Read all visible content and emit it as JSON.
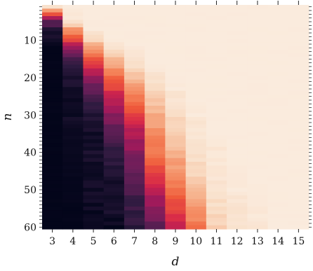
{
  "chart_data": {
    "type": "heatmap",
    "title": "",
    "xlabel": "d",
    "ylabel": "n",
    "x": [
      3,
      4,
      5,
      6,
      7,
      8,
      9,
      10,
      11,
      12,
      13,
      14,
      15
    ],
    "y_range": [
      1,
      60
    ],
    "y_ticks": [
      10,
      20,
      30,
      40,
      50,
      60
    ],
    "y_inverted": true,
    "colormap": "rocket",
    "colormap_stops": [
      "#03051a",
      "#2f1b40",
      "#6b1f5a",
      "#a11a5b",
      "#d6264a",
      "#ef5a3a",
      "#f4845a",
      "#f6b48f",
      "#f9dcc4",
      "#faebdd"
    ],
    "value_range": [
      0,
      1
    ],
    "grid": false,
    "legend": "none",
    "columns": [
      {
        "d": 3,
        "transition": [
          [
            1,
            0.95
          ],
          [
            3,
            0.55
          ],
          [
            5,
            0.2
          ],
          [
            8,
            0.05
          ],
          [
            12,
            0.0
          ],
          [
            60,
            0.0
          ]
        ]
      },
      {
        "d": 4,
        "transition": [
          [
            1,
            1.0
          ],
          [
            5,
            0.95
          ],
          [
            7,
            0.72
          ],
          [
            10,
            0.5
          ],
          [
            13,
            0.25
          ],
          [
            17,
            0.1
          ],
          [
            24,
            0.03
          ],
          [
            60,
            0.0
          ]
        ]
      },
      {
        "d": 5,
        "transition": [
          [
            1,
            1.0
          ],
          [
            7,
            1.0
          ],
          [
            10,
            0.85
          ],
          [
            14,
            0.6
          ],
          [
            18,
            0.4
          ],
          [
            22,
            0.22
          ],
          [
            28,
            0.1
          ],
          [
            35,
            0.05
          ],
          [
            60,
            0.02
          ]
        ]
      },
      {
        "d": 6,
        "transition": [
          [
            1,
            1.0
          ],
          [
            9,
            1.0
          ],
          [
            13,
            0.88
          ],
          [
            18,
            0.68
          ],
          [
            24,
            0.45
          ],
          [
            30,
            0.28
          ],
          [
            36,
            0.15
          ],
          [
            45,
            0.07
          ],
          [
            60,
            0.03
          ]
        ]
      },
      {
        "d": 7,
        "transition": [
          [
            1,
            1.0
          ],
          [
            11,
            1.0
          ],
          [
            16,
            0.92
          ],
          [
            22,
            0.75
          ],
          [
            28,
            0.55
          ],
          [
            34,
            0.38
          ],
          [
            42,
            0.25
          ],
          [
            50,
            0.16
          ],
          [
            60,
            0.1
          ]
        ]
      },
      {
        "d": 8,
        "transition": [
          [
            1,
            1.0
          ],
          [
            16,
            1.0
          ],
          [
            22,
            0.92
          ],
          [
            28,
            0.8
          ],
          [
            34,
            0.7
          ],
          [
            40,
            0.62
          ],
          [
            46,
            0.5
          ],
          [
            52,
            0.35
          ],
          [
            57,
            0.25
          ],
          [
            60,
            0.2
          ]
        ]
      },
      {
        "d": 9,
        "transition": [
          [
            1,
            1.0
          ],
          [
            20,
            1.0
          ],
          [
            26,
            0.95
          ],
          [
            32,
            0.88
          ],
          [
            38,
            0.8
          ],
          [
            44,
            0.72
          ],
          [
            50,
            0.62
          ],
          [
            56,
            0.48
          ],
          [
            60,
            0.4
          ]
        ]
      },
      {
        "d": 10,
        "transition": [
          [
            1,
            1.0
          ],
          [
            26,
            1.0
          ],
          [
            32,
            0.96
          ],
          [
            40,
            0.92
          ],
          [
            46,
            0.86
          ],
          [
            52,
            0.78
          ],
          [
            56,
            0.7
          ],
          [
            60,
            0.62
          ]
        ]
      },
      {
        "d": 11,
        "transition": [
          [
            1,
            1.0
          ],
          [
            34,
            1.0
          ],
          [
            40,
            0.97
          ],
          [
            48,
            0.94
          ],
          [
            54,
            0.9
          ],
          [
            60,
            0.86
          ]
        ]
      },
      {
        "d": 12,
        "transition": [
          [
            1,
            1.0
          ],
          [
            40,
            1.0
          ],
          [
            48,
            0.98
          ],
          [
            54,
            0.95
          ],
          [
            60,
            0.93
          ]
        ]
      },
      {
        "d": 13,
        "transition": [
          [
            1,
            1.0
          ],
          [
            48,
            1.0
          ],
          [
            54,
            0.98
          ],
          [
            60,
            0.96
          ]
        ]
      },
      {
        "d": 14,
        "transition": [
          [
            1,
            1.0
          ],
          [
            60,
            1.0
          ]
        ]
      },
      {
        "d": 15,
        "transition": [
          [
            1,
            1.0
          ],
          [
            60,
            1.0
          ]
        ]
      }
    ]
  }
}
